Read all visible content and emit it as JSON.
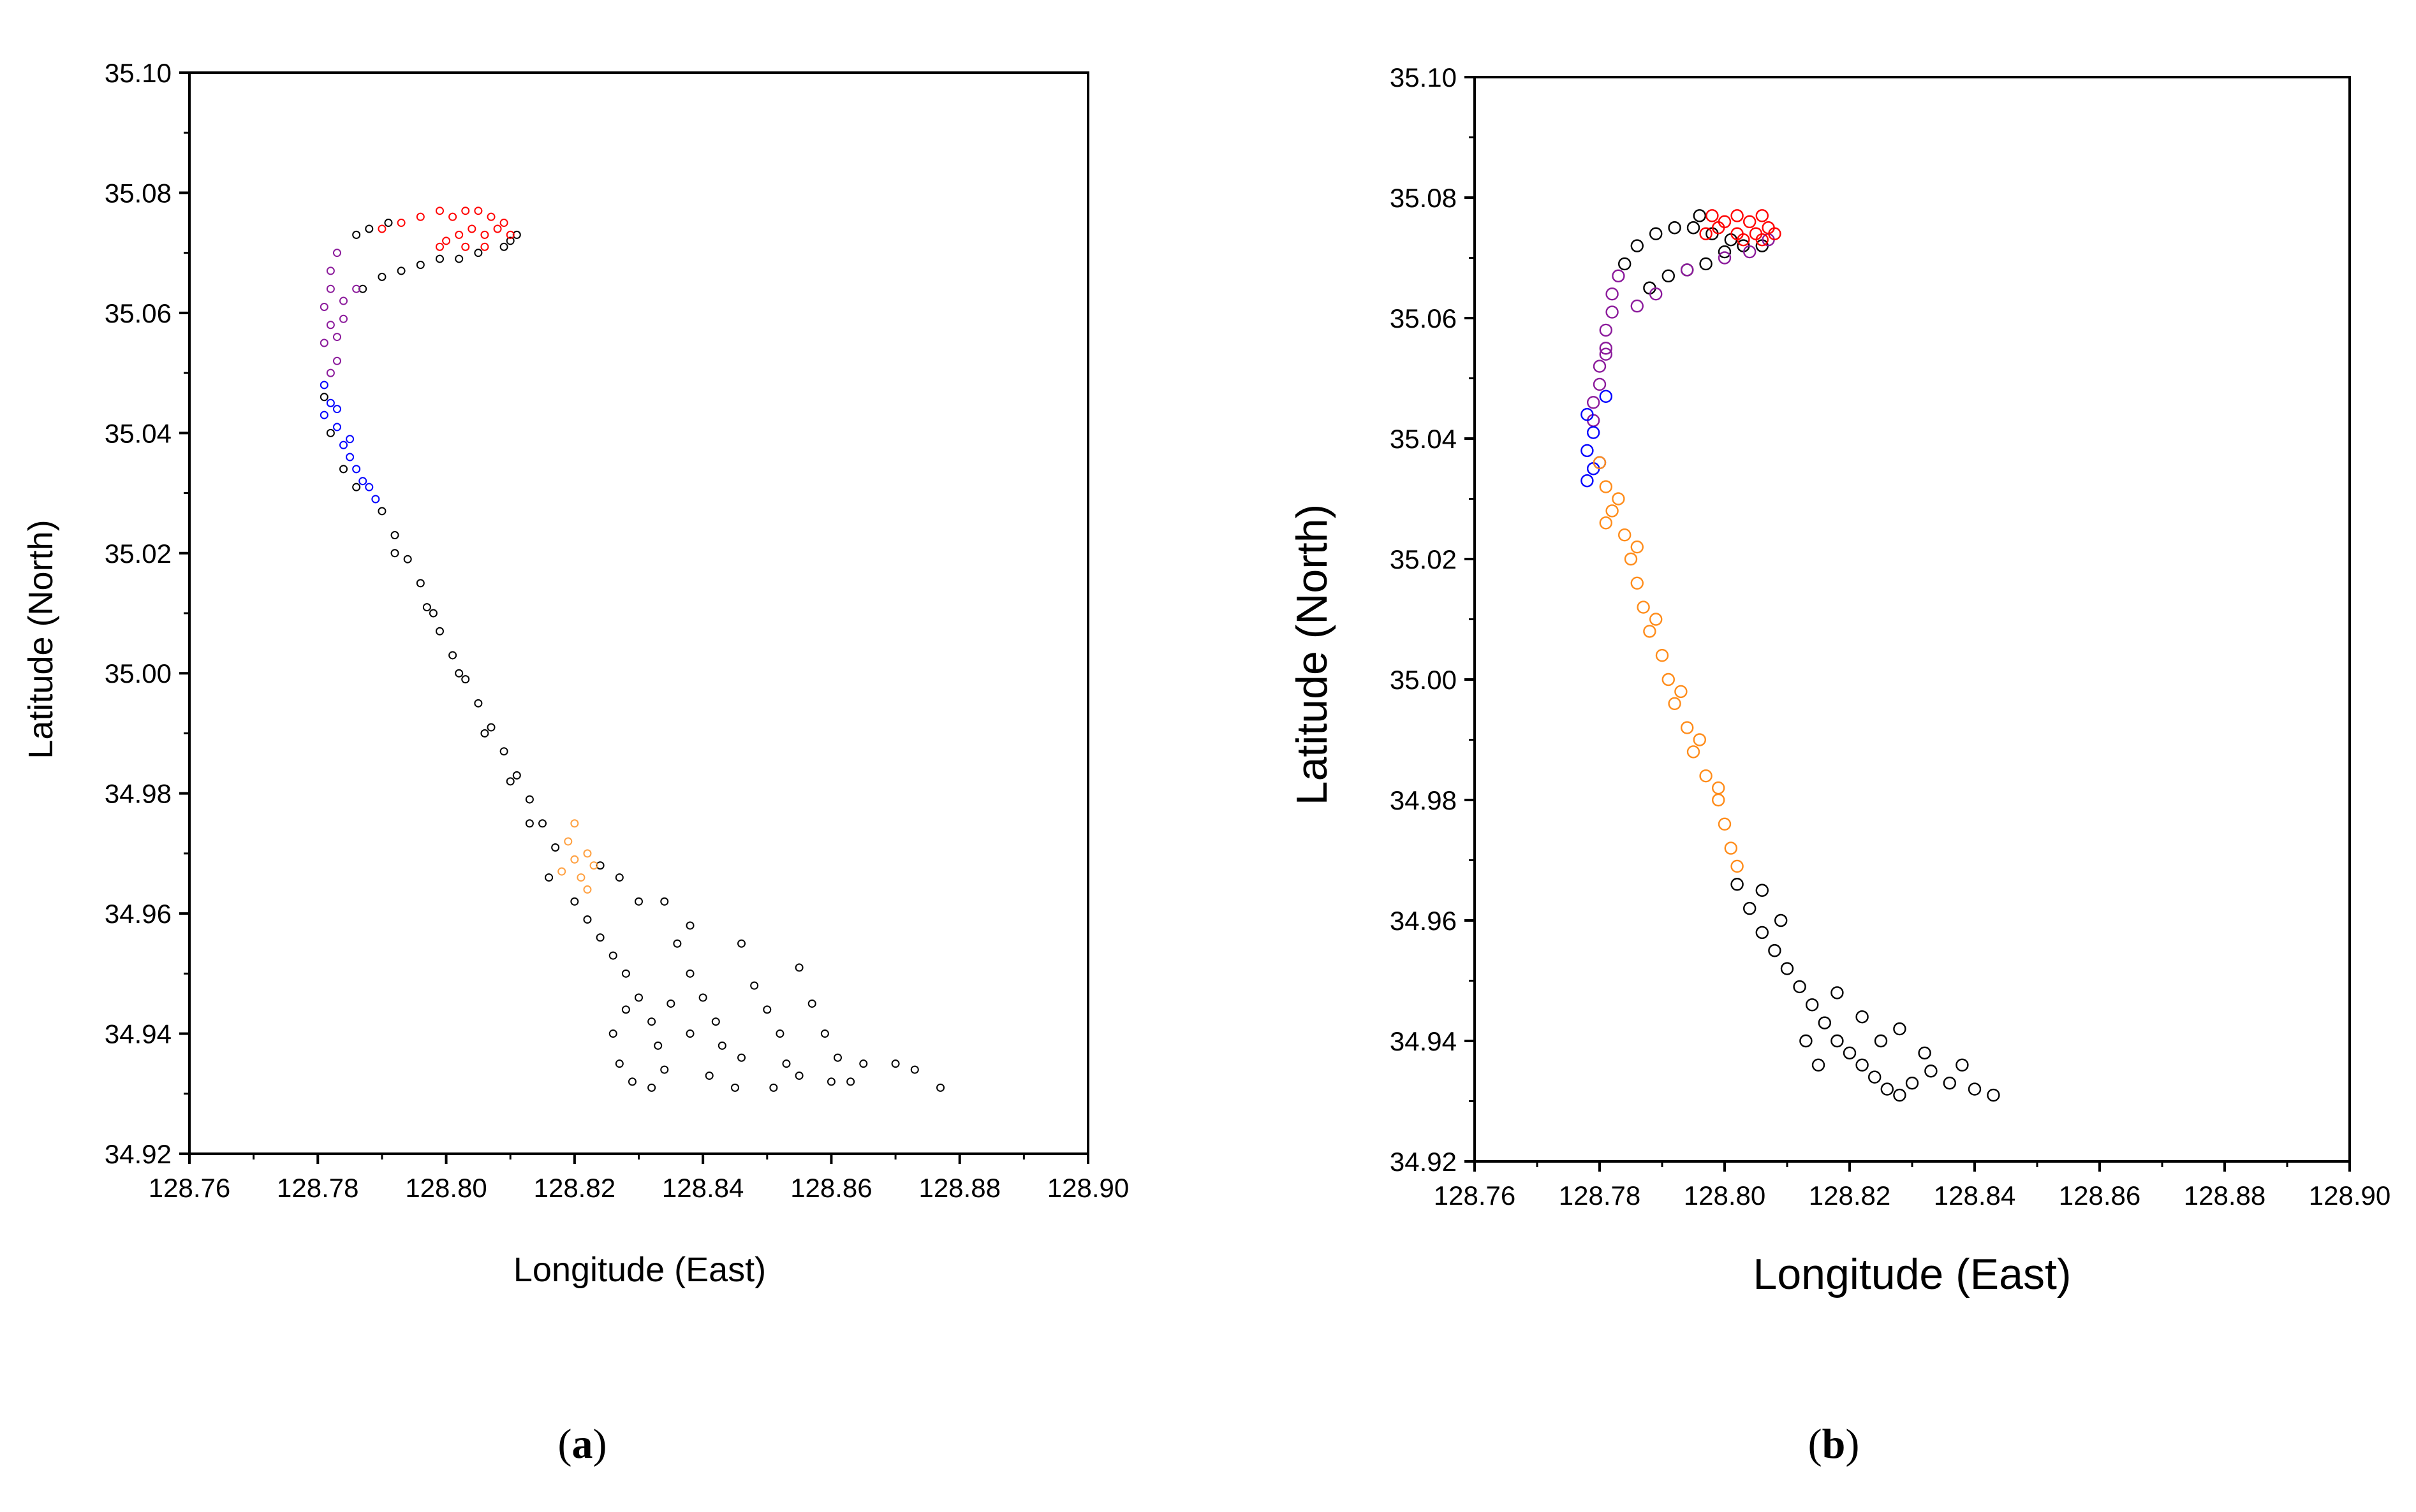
{
  "chart_data": [
    {
      "type": "scatter",
      "panel_label": "a",
      "xlabel": "Longitude (East)",
      "ylabel": "Latitude (North)",
      "xlim": [
        128.76,
        128.9
      ],
      "ylim": [
        34.92,
        35.1
      ],
      "xticks": [
        "128.76",
        "128.78",
        "128.80",
        "128.82",
        "128.84",
        "128.86",
        "128.88",
        "128.90"
      ],
      "yticks": [
        "34.92",
        "34.94",
        "34.96",
        "34.98",
        "35.00",
        "35.02",
        "35.04",
        "35.06",
        "35.08",
        "35.10"
      ],
      "grid": false,
      "marker": "open-circle",
      "series": [
        {
          "color": "#000000",
          "points": [
            [
              128.786,
              35.073
            ],
            [
              128.788,
              35.074
            ],
            [
              128.791,
              35.075
            ],
            [
              128.81,
              35.072
            ],
            [
              128.811,
              35.073
            ],
            [
              128.809,
              35.071
            ],
            [
              128.787,
              35.064
            ],
            [
              128.79,
              35.066
            ],
            [
              128.793,
              35.067
            ],
            [
              128.796,
              35.068
            ],
            [
              128.799,
              35.069
            ],
            [
              128.802,
              35.069
            ],
            [
              128.805,
              35.07
            ],
            [
              128.781,
              35.046
            ],
            [
              128.782,
              35.04
            ],
            [
              128.784,
              35.034
            ],
            [
              128.786,
              35.031
            ],
            [
              128.79,
              35.027
            ],
            [
              128.792,
              35.023
            ],
            [
              128.794,
              35.019
            ],
            [
              128.796,
              35.015
            ],
            [
              128.797,
              35.011
            ],
            [
              128.799,
              35.007
            ],
            [
              128.801,
              35.003
            ],
            [
              128.803,
              34.999
            ],
            [
              128.805,
              34.995
            ],
            [
              128.807,
              34.991
            ],
            [
              128.809,
              34.987
            ],
            [
              128.811,
              34.983
            ],
            [
              128.813,
              34.979
            ],
            [
              128.815,
              34.975
            ],
            [
              128.817,
              34.971
            ],
            [
              128.816,
              34.966
            ],
            [
              128.82,
              34.962
            ],
            [
              128.822,
              34.959
            ],
            [
              128.824,
              34.956
            ],
            [
              128.826,
              34.953
            ],
            [
              128.828,
              34.95
            ],
            [
              128.83,
              34.946
            ],
            [
              128.832,
              34.942
            ],
            [
              128.833,
              34.938
            ],
            [
              128.834,
              34.934
            ],
            [
              128.832,
              34.931
            ],
            [
              128.826,
              34.94
            ],
            [
              128.827,
              34.935
            ],
            [
              128.829,
              34.932
            ],
            [
              128.836,
              34.955
            ],
            [
              128.838,
              34.95
            ],
            [
              128.84,
              34.946
            ],
            [
              128.842,
              34.942
            ],
            [
              128.843,
              34.938
            ],
            [
              128.841,
              34.933
            ],
            [
              128.845,
              34.931
            ],
            [
              128.846,
              34.955
            ],
            [
              128.848,
              34.948
            ],
            [
              128.85,
              34.944
            ],
            [
              128.852,
              34.94
            ],
            [
              128.853,
              34.935
            ],
            [
              128.851,
              34.931
            ],
            [
              128.855,
              34.951
            ],
            [
              128.857,
              34.945
            ],
            [
              128.859,
              34.94
            ],
            [
              128.861,
              34.936
            ],
            [
              128.863,
              34.932
            ],
            [
              128.865,
              34.935
            ],
            [
              128.87,
              34.935
            ],
            [
              128.873,
              34.934
            ],
            [
              128.877,
              34.931
            ],
            [
              128.834,
              34.962
            ],
            [
              128.838,
              34.958
            ],
            [
              128.827,
              34.966
            ],
            [
              128.83,
              34.962
            ],
            [
              128.835,
              34.945
            ],
            [
              128.846,
              34.936
            ],
            [
              128.855,
              34.933
            ],
            [
              128.86,
              34.932
            ],
            [
              128.824,
              34.968
            ],
            [
              128.828,
              34.944
            ],
            [
              128.838,
              34.94
            ],
            [
              128.792,
              35.02
            ],
            [
              128.798,
              35.01
            ],
            [
              128.802,
              35.0
            ],
            [
              128.806,
              34.99
            ],
            [
              128.81,
              34.982
            ],
            [
              128.813,
              34.975
            ]
          ]
        },
        {
          "color": "#ff0000",
          "points": [
            [
              128.79,
              35.074
            ],
            [
              128.793,
              35.075
            ],
            [
              128.796,
              35.076
            ],
            [
              128.799,
              35.077
            ],
            [
              128.801,
              35.076
            ],
            [
              128.803,
              35.077
            ],
            [
              128.805,
              35.077
            ],
            [
              128.807,
              35.076
            ],
            [
              128.809,
              35.075
            ],
            [
              128.8,
              35.072
            ],
            [
              128.802,
              35.073
            ],
            [
              128.804,
              35.074
            ],
            [
              128.806,
              35.073
            ],
            [
              128.808,
              35.074
            ],
            [
              128.81,
              35.073
            ],
            [
              128.799,
              35.071
            ],
            [
              128.803,
              35.071
            ],
            [
              128.806,
              35.071
            ]
          ]
        },
        {
          "color": "#8b1a9b",
          "points": [
            [
              128.783,
              35.07
            ],
            [
              128.782,
              35.067
            ],
            [
              128.782,
              35.064
            ],
            [
              128.781,
              35.061
            ],
            [
              128.782,
              35.058
            ],
            [
              128.781,
              35.055
            ],
            [
              128.783,
              35.052
            ],
            [
              128.784,
              35.062
            ],
            [
              128.786,
              35.064
            ],
            [
              128.783,
              35.056
            ],
            [
              128.782,
              35.05
            ],
            [
              128.784,
              35.059
            ]
          ]
        },
        {
          "color": "#0000ff",
          "points": [
            [
              128.781,
              35.048
            ],
            [
              128.782,
              35.045
            ],
            [
              128.781,
              35.043
            ],
            [
              128.783,
              35.041
            ],
            [
              128.784,
              35.038
            ],
            [
              128.785,
              35.036
            ],
            [
              128.786,
              35.034
            ],
            [
              128.787,
              35.032
            ],
            [
              128.788,
              35.031
            ],
            [
              128.789,
              35.029
            ],
            [
              128.783,
              35.044
            ],
            [
              128.785,
              35.039
            ]
          ]
        },
        {
          "color": "#ffa040",
          "points": [
            [
              128.819,
              34.972
            ],
            [
              128.82,
              34.969
            ],
            [
              128.821,
              34.966
            ],
            [
              128.822,
              34.964
            ],
            [
              128.82,
              34.975
            ],
            [
              128.822,
              34.97
            ],
            [
              128.818,
              34.967
            ],
            [
              128.823,
              34.968
            ]
          ]
        }
      ]
    },
    {
      "type": "scatter",
      "panel_label": "b",
      "xlabel": "Longitude (East)",
      "ylabel": "Latitude (North)",
      "xlim": [
        128.76,
        128.9
      ],
      "ylim": [
        34.92,
        35.1
      ],
      "xticks": [
        "128.76",
        "128.78",
        "128.80",
        "128.82",
        "128.84",
        "128.86",
        "128.88",
        "128.90"
      ],
      "yticks": [
        "34.92",
        "34.94",
        "34.96",
        "34.98",
        "35.00",
        "35.02",
        "35.04",
        "35.06",
        "35.08",
        "35.10"
      ],
      "grid": false,
      "marker": "open-circle",
      "series": [
        {
          "color": "#000000",
          "points": [
            [
              128.784,
              35.069
            ],
            [
              128.786,
              35.072
            ],
            [
              128.789,
              35.074
            ],
            [
              128.792,
              35.075
            ],
            [
              128.795,
              35.075
            ],
            [
              128.798,
              35.074
            ],
            [
              128.801,
              35.073
            ],
            [
              128.788,
              35.065
            ],
            [
              128.791,
              35.067
            ],
            [
              128.794,
              35.068
            ],
            [
              128.797,
              35.069
            ],
            [
              128.8,
              35.071
            ],
            [
              128.803,
              35.072
            ],
            [
              128.806,
              35.072
            ],
            [
              128.796,
              35.077
            ],
            [
              128.802,
              34.966
            ],
            [
              128.804,
              34.962
            ],
            [
              128.806,
              34.958
            ],
            [
              128.808,
              34.955
            ],
            [
              128.81,
              34.952
            ],
            [
              128.812,
              34.949
            ],
            [
              128.814,
              34.946
            ],
            [
              128.816,
              34.943
            ],
            [
              128.818,
              34.94
            ],
            [
              128.82,
              34.938
            ],
            [
              128.822,
              34.936
            ],
            [
              128.824,
              34.934
            ],
            [
              128.826,
              34.932
            ],
            [
              128.828,
              34.931
            ],
            [
              128.83,
              34.933
            ],
            [
              128.833,
              34.935
            ],
            [
              128.836,
              34.933
            ],
            [
              128.84,
              34.932
            ],
            [
              128.843,
              34.931
            ],
            [
              128.838,
              34.936
            ],
            [
              128.825,
              34.94
            ],
            [
              128.822,
              34.944
            ],
            [
              128.815,
              34.936
            ],
            [
              128.813,
              34.94
            ],
            [
              128.818,
              34.948
            ],
            [
              128.828,
              34.942
            ],
            [
              128.832,
              34.938
            ],
            [
              128.809,
              34.96
            ],
            [
              128.806,
              34.965
            ]
          ]
        },
        {
          "color": "#8b1a9b",
          "points": [
            [
              128.783,
              35.067
            ],
            [
              128.782,
              35.064
            ],
            [
              128.782,
              35.061
            ],
            [
              128.781,
              35.058
            ],
            [
              128.781,
              35.055
            ],
            [
              128.78,
              35.052
            ],
            [
              128.78,
              35.049
            ],
            [
              128.779,
              35.046
            ],
            [
              128.779,
              35.043
            ],
            [
              128.781,
              35.054
            ],
            [
              128.786,
              35.062
            ],
            [
              128.789,
              35.064
            ],
            [
              128.794,
              35.068
            ],
            [
              128.8,
              35.07
            ],
            [
              128.804,
              35.071
            ],
            [
              128.807,
              35.073
            ]
          ]
        },
        {
          "color": "#0000ff",
          "points": [
            [
              128.778,
              35.044
            ],
            [
              128.779,
              35.041
            ],
            [
              128.778,
              35.038
            ],
            [
              128.779,
              35.035
            ],
            [
              128.778,
              35.033
            ],
            [
              128.781,
              35.047
            ],
            [
              128.78,
              35.036
            ]
          ]
        },
        {
          "color": "#ff8c1a",
          "points": [
            [
              128.78,
              35.036
            ],
            [
              128.781,
              35.032
            ],
            [
              128.782,
              35.028
            ],
            [
              128.784,
              35.024
            ],
            [
              128.785,
              35.02
            ],
            [
              128.786,
              35.016
            ],
            [
              128.787,
              35.012
            ],
            [
              128.788,
              35.008
            ],
            [
              128.79,
              35.004
            ],
            [
              128.791,
              35.0
            ],
            [
              128.792,
              34.996
            ],
            [
              128.794,
              34.992
            ],
            [
              128.795,
              34.988
            ],
            [
              128.797,
              34.984
            ],
            [
              128.799,
              34.98
            ],
            [
              128.8,
              34.976
            ],
            [
              128.801,
              34.972
            ],
            [
              128.802,
              34.969
            ],
            [
              128.783,
              35.03
            ],
            [
              128.786,
              35.022
            ],
            [
              128.789,
              35.01
            ],
            [
              128.793,
              34.998
            ],
            [
              128.796,
              34.99
            ],
            [
              128.799,
              34.982
            ],
            [
              128.781,
              35.026
            ]
          ]
        },
        {
          "color": "#ff0000",
          "points": [
            [
              128.798,
              35.077
            ],
            [
              128.8,
              35.076
            ],
            [
              128.802,
              35.077
            ],
            [
              128.804,
              35.076
            ],
            [
              128.806,
              35.077
            ],
            [
              128.807,
              35.075
            ],
            [
              128.805,
              35.074
            ],
            [
              128.802,
              35.074
            ],
            [
              128.799,
              35.075
            ],
            [
              128.803,
              35.073
            ],
            [
              128.806,
              35.073
            ],
            [
              128.808,
              35.074
            ],
            [
              128.797,
              35.074
            ]
          ]
        }
      ]
    }
  ],
  "captions": {
    "a": "a",
    "b": "b"
  }
}
